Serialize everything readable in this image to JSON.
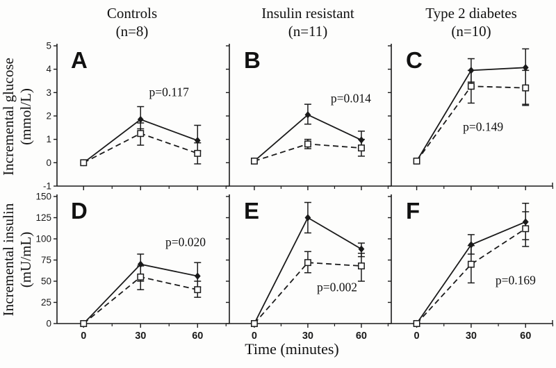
{
  "figure": {
    "ink_color": "#1a1a1a",
    "background": "#fdfdfc",
    "xlabel": "Time (minutes)",
    "columns": [
      {
        "title": "Controls",
        "n": "(n=8)"
      },
      {
        "title": "Insulin resistant",
        "n": "(n=11)"
      },
      {
        "title": "Type 2 diabetes",
        "n": "(n=10)"
      }
    ],
    "rows": [
      {
        "ylabel_line1": "Incremental glucose",
        "ylabel_line2": "(mmol/L)"
      },
      {
        "ylabel_line1": "Incremental insulin",
        "ylabel_line2": "(mU/mL)"
      }
    ]
  },
  "chart_data": [
    {
      "type": "line",
      "panel_label": "A",
      "group": "Controls",
      "row": 0,
      "col": 0,
      "ylabel": "Incremental glucose (mmol/L)",
      "x": [
        0,
        30,
        60
      ],
      "xlim": [
        -14,
        76
      ],
      "x_ticks_major": [
        0,
        30,
        60
      ],
      "x_ticks_minor": [
        15,
        45,
        75
      ],
      "ylim": [
        -1,
        5
      ],
      "yticks": [
        -1,
        0,
        1,
        2,
        3,
        4,
        5
      ],
      "show_y_tick_labels": true,
      "show_x_tick_labels": false,
      "series": [
        {
          "name": "solid-filled-diamond",
          "marker": "filled-diamond",
          "line": "solid",
          "values": [
            0,
            1.85,
            0.95
          ],
          "err_lo": [
            null,
            1.45,
            0.5
          ],
          "err_hi": [
            null,
            2.4,
            1.6
          ]
        },
        {
          "name": "dashed-open-square",
          "marker": "open-square",
          "line": "dashed",
          "values": [
            0,
            1.25,
            0.4
          ],
          "err_lo": [
            null,
            0.75,
            -0.05
          ],
          "err_hi": [
            null,
            1.7,
            0.85
          ]
        }
      ],
      "p_label": "p=0.117",
      "p_label_pos": {
        "x": 0.69,
        "y": 0.335
      }
    },
    {
      "type": "line",
      "panel_label": "B",
      "group": "Insulin resistant",
      "row": 0,
      "col": 1,
      "ylabel": "Incremental glucose (mmol/L)",
      "x": [
        0,
        30,
        60
      ],
      "xlim": [
        -14,
        76
      ],
      "x_ticks_major": [
        0,
        30,
        60
      ],
      "x_ticks_minor": [
        15,
        45,
        75
      ],
      "ylim": [
        -1,
        5
      ],
      "yticks": [
        -1,
        0,
        1,
        2,
        3,
        4,
        5
      ],
      "show_y_tick_labels": false,
      "show_x_tick_labels": false,
      "series": [
        {
          "name": "solid-filled-diamond",
          "marker": "filled-diamond",
          "line": "solid",
          "values": [
            0.07,
            2.05,
            0.97
          ],
          "err_lo": [
            null,
            1.65,
            0.62
          ],
          "err_hi": [
            null,
            2.5,
            1.35
          ]
        },
        {
          "name": "dashed-open-square",
          "marker": "open-square",
          "line": "dashed",
          "values": [
            0.07,
            0.8,
            0.63
          ],
          "err_lo": [
            null,
            0.6,
            0.28
          ],
          "err_hi": [
            null,
            1.0,
            1.0
          ]
        }
      ],
      "p_label": "p=0.014",
      "p_label_pos": {
        "x": 0.758,
        "y": 0.375
      }
    },
    {
      "type": "line",
      "panel_label": "C",
      "group": "Type 2 diabetes",
      "row": 0,
      "col": 2,
      "ylabel": "Incremental glucose (mmol/L)",
      "x": [
        0,
        30,
        60
      ],
      "xlim": [
        -14,
        76
      ],
      "x_ticks_major": [
        0,
        30,
        60
      ],
      "x_ticks_minor": [
        15,
        45,
        75
      ],
      "ylim": [
        -1,
        5
      ],
      "yticks": [
        -1,
        0,
        1,
        2,
        3,
        4,
        5
      ],
      "show_y_tick_labels": false,
      "show_x_tick_labels": false,
      "series": [
        {
          "name": "solid-filled-diamond",
          "marker": "filled-diamond",
          "line": "solid",
          "values": [
            0.07,
            3.95,
            4.07
          ],
          "err_lo": [
            null,
            3.45,
            2.5
          ],
          "err_hi": [
            null,
            4.45,
            4.87
          ]
        },
        {
          "name": "dashed-open-square",
          "marker": "open-square",
          "line": "dashed",
          "values": [
            0.07,
            3.27,
            3.2
          ],
          "err_lo": [
            null,
            2.55,
            2.45
          ],
          "err_hi": [
            null,
            3.95,
            3.95
          ]
        }
      ],
      "p_label": "p=0.149",
      "p_label_pos": {
        "x": 0.57,
        "y": 0.55
      }
    },
    {
      "type": "line",
      "panel_label": "D",
      "group": "Controls",
      "row": 1,
      "col": 0,
      "ylabel": "Incremental insulin (mU/mL)",
      "x": [
        0,
        30,
        60
      ],
      "xlim": [
        -14,
        76
      ],
      "x_ticks_major": [
        0,
        30,
        60
      ],
      "x_ticks_minor": [
        15,
        45,
        75
      ],
      "ylim": [
        0,
        150
      ],
      "yticks": [
        0,
        25,
        50,
        75,
        100,
        125,
        150
      ],
      "show_y_tick_labels": true,
      "show_x_tick_labels": true,
      "series": [
        {
          "name": "solid-filled-diamond",
          "marker": "filled-diamond",
          "line": "solid",
          "values": [
            0,
            70,
            56
          ],
          "err_lo": [
            null,
            50,
            43
          ],
          "err_hi": [
            null,
            82,
            72
          ]
        },
        {
          "name": "dashed-open-square",
          "marker": "open-square",
          "line": "dashed",
          "values": [
            0,
            55,
            40
          ],
          "err_lo": [
            null,
            40,
            31
          ],
          "err_hi": [
            null,
            68,
            50
          ]
        }
      ],
      "p_label": "p=0.020",
      "p_label_pos": {
        "x": 0.775,
        "y": 0.285
      }
    },
    {
      "type": "line",
      "panel_label": "E",
      "group": "Insulin resistant",
      "row": 1,
      "col": 1,
      "ylabel": "Incremental insulin (mU/mL)",
      "x": [
        0,
        30,
        60
      ],
      "xlim": [
        -14,
        76
      ],
      "x_ticks_major": [
        0,
        30,
        60
      ],
      "x_ticks_minor": [
        15,
        45,
        75
      ],
      "ylim": [
        0,
        150
      ],
      "yticks": [
        0,
        25,
        50,
        75,
        100,
        125,
        150
      ],
      "show_y_tick_labels": false,
      "show_x_tick_labels": true,
      "series": [
        {
          "name": "solid-filled-diamond",
          "marker": "filled-diamond",
          "line": "solid",
          "values": [
            0,
            125,
            88
          ],
          "err_lo": [
            null,
            107,
            79
          ],
          "err_hi": [
            null,
            143,
            95
          ]
        },
        {
          "name": "dashed-open-square",
          "marker": "open-square",
          "line": "dashed",
          "values": [
            0,
            72,
            68
          ],
          "err_lo": [
            null,
            60,
            50
          ],
          "err_hi": [
            null,
            85,
            83
          ]
        }
      ],
      "p_label": "p=0.002",
      "p_label_pos": {
        "x": 0.675,
        "y": 0.54
      }
    },
    {
      "type": "line",
      "panel_label": "F",
      "group": "Type 2 diabetes",
      "row": 1,
      "col": 2,
      "ylabel": "Incremental insulin (mU/mL)",
      "x": [
        0,
        30,
        60
      ],
      "xlim": [
        -14,
        76
      ],
      "x_ticks_major": [
        0,
        30,
        60
      ],
      "x_ticks_minor": [
        15,
        45,
        75
      ],
      "ylim": [
        0,
        150
      ],
      "yticks": [
        0,
        25,
        50,
        75,
        100,
        125,
        150
      ],
      "show_y_tick_labels": false,
      "show_x_tick_labels": true,
      "series": [
        {
          "name": "solid-filled-diamond",
          "marker": "filled-diamond",
          "line": "solid",
          "values": [
            0,
            93,
            120
          ],
          "err_lo": [
            null,
            82,
            99
          ],
          "err_hi": [
            null,
            105,
            142
          ]
        },
        {
          "name": "dashed-open-square",
          "marker": "open-square",
          "line": "dashed",
          "values": [
            0,
            70,
            112
          ],
          "err_lo": [
            null,
            48,
            91
          ],
          "err_hi": [
            null,
            92,
            132
          ]
        }
      ],
      "p_label": "p=0.169",
      "p_label_pos": {
        "x": 0.762,
        "y": 0.5
      }
    }
  ]
}
